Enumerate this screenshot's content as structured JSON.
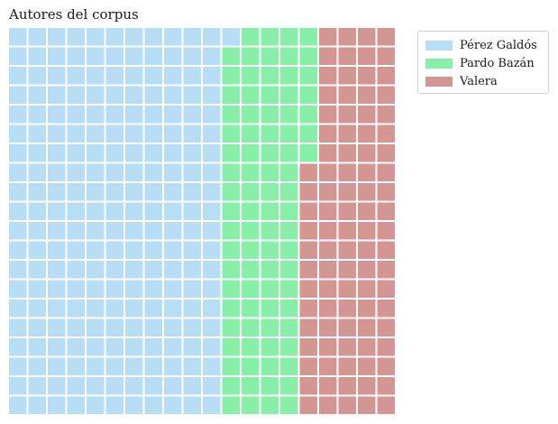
{
  "chart_data": {
    "type": "waffle",
    "title": "Autores del corpus",
    "grid": {
      "rows": 20,
      "cols": 20,
      "fill_order": "column-major, top-to-bottom, left-to-right"
    },
    "categories": [
      "Pérez Galdós",
      "Pardo Bazán",
      "Valera"
    ],
    "values": [
      221,
      86,
      93
    ],
    "colors": [
      "#b7def5",
      "#87efa8",
      "#d49692"
    ],
    "legend_position": "upper right, outside plot"
  }
}
